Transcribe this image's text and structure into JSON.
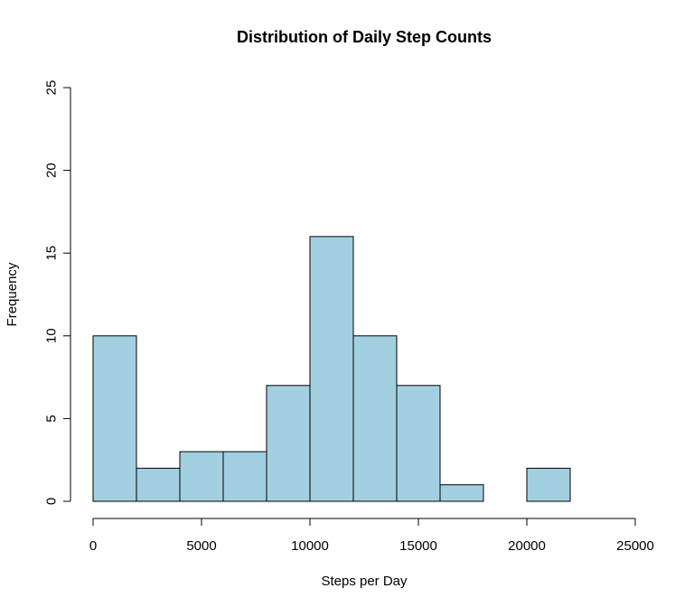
{
  "chart_data": {
    "type": "bar",
    "title": "Distribution of Daily Step Counts",
    "xlabel": "Steps per Day",
    "ylabel": "Frequency",
    "bin_edges": [
      0,
      2000,
      4000,
      6000,
      8000,
      10000,
      12000,
      14000,
      16000,
      18000,
      20000,
      22000
    ],
    "values": [
      10,
      2,
      3,
      3,
      7,
      16,
      10,
      7,
      1,
      0,
      2
    ],
    "xlim": [
      0,
      25000
    ],
    "ylim": [
      0,
      25
    ],
    "xticks": [
      0,
      5000,
      10000,
      15000,
      20000,
      25000
    ],
    "xtick_labels": [
      "0",
      "5000",
      "10000",
      "15000",
      "20000",
      "25000"
    ],
    "yticks": [
      0,
      5,
      10,
      15,
      20,
      25
    ],
    "ytick_labels": [
      "0",
      "5",
      "10",
      "15",
      "20",
      "25"
    ],
    "bar_color": "#a2d0e1",
    "grid": false,
    "legend": "none"
  }
}
